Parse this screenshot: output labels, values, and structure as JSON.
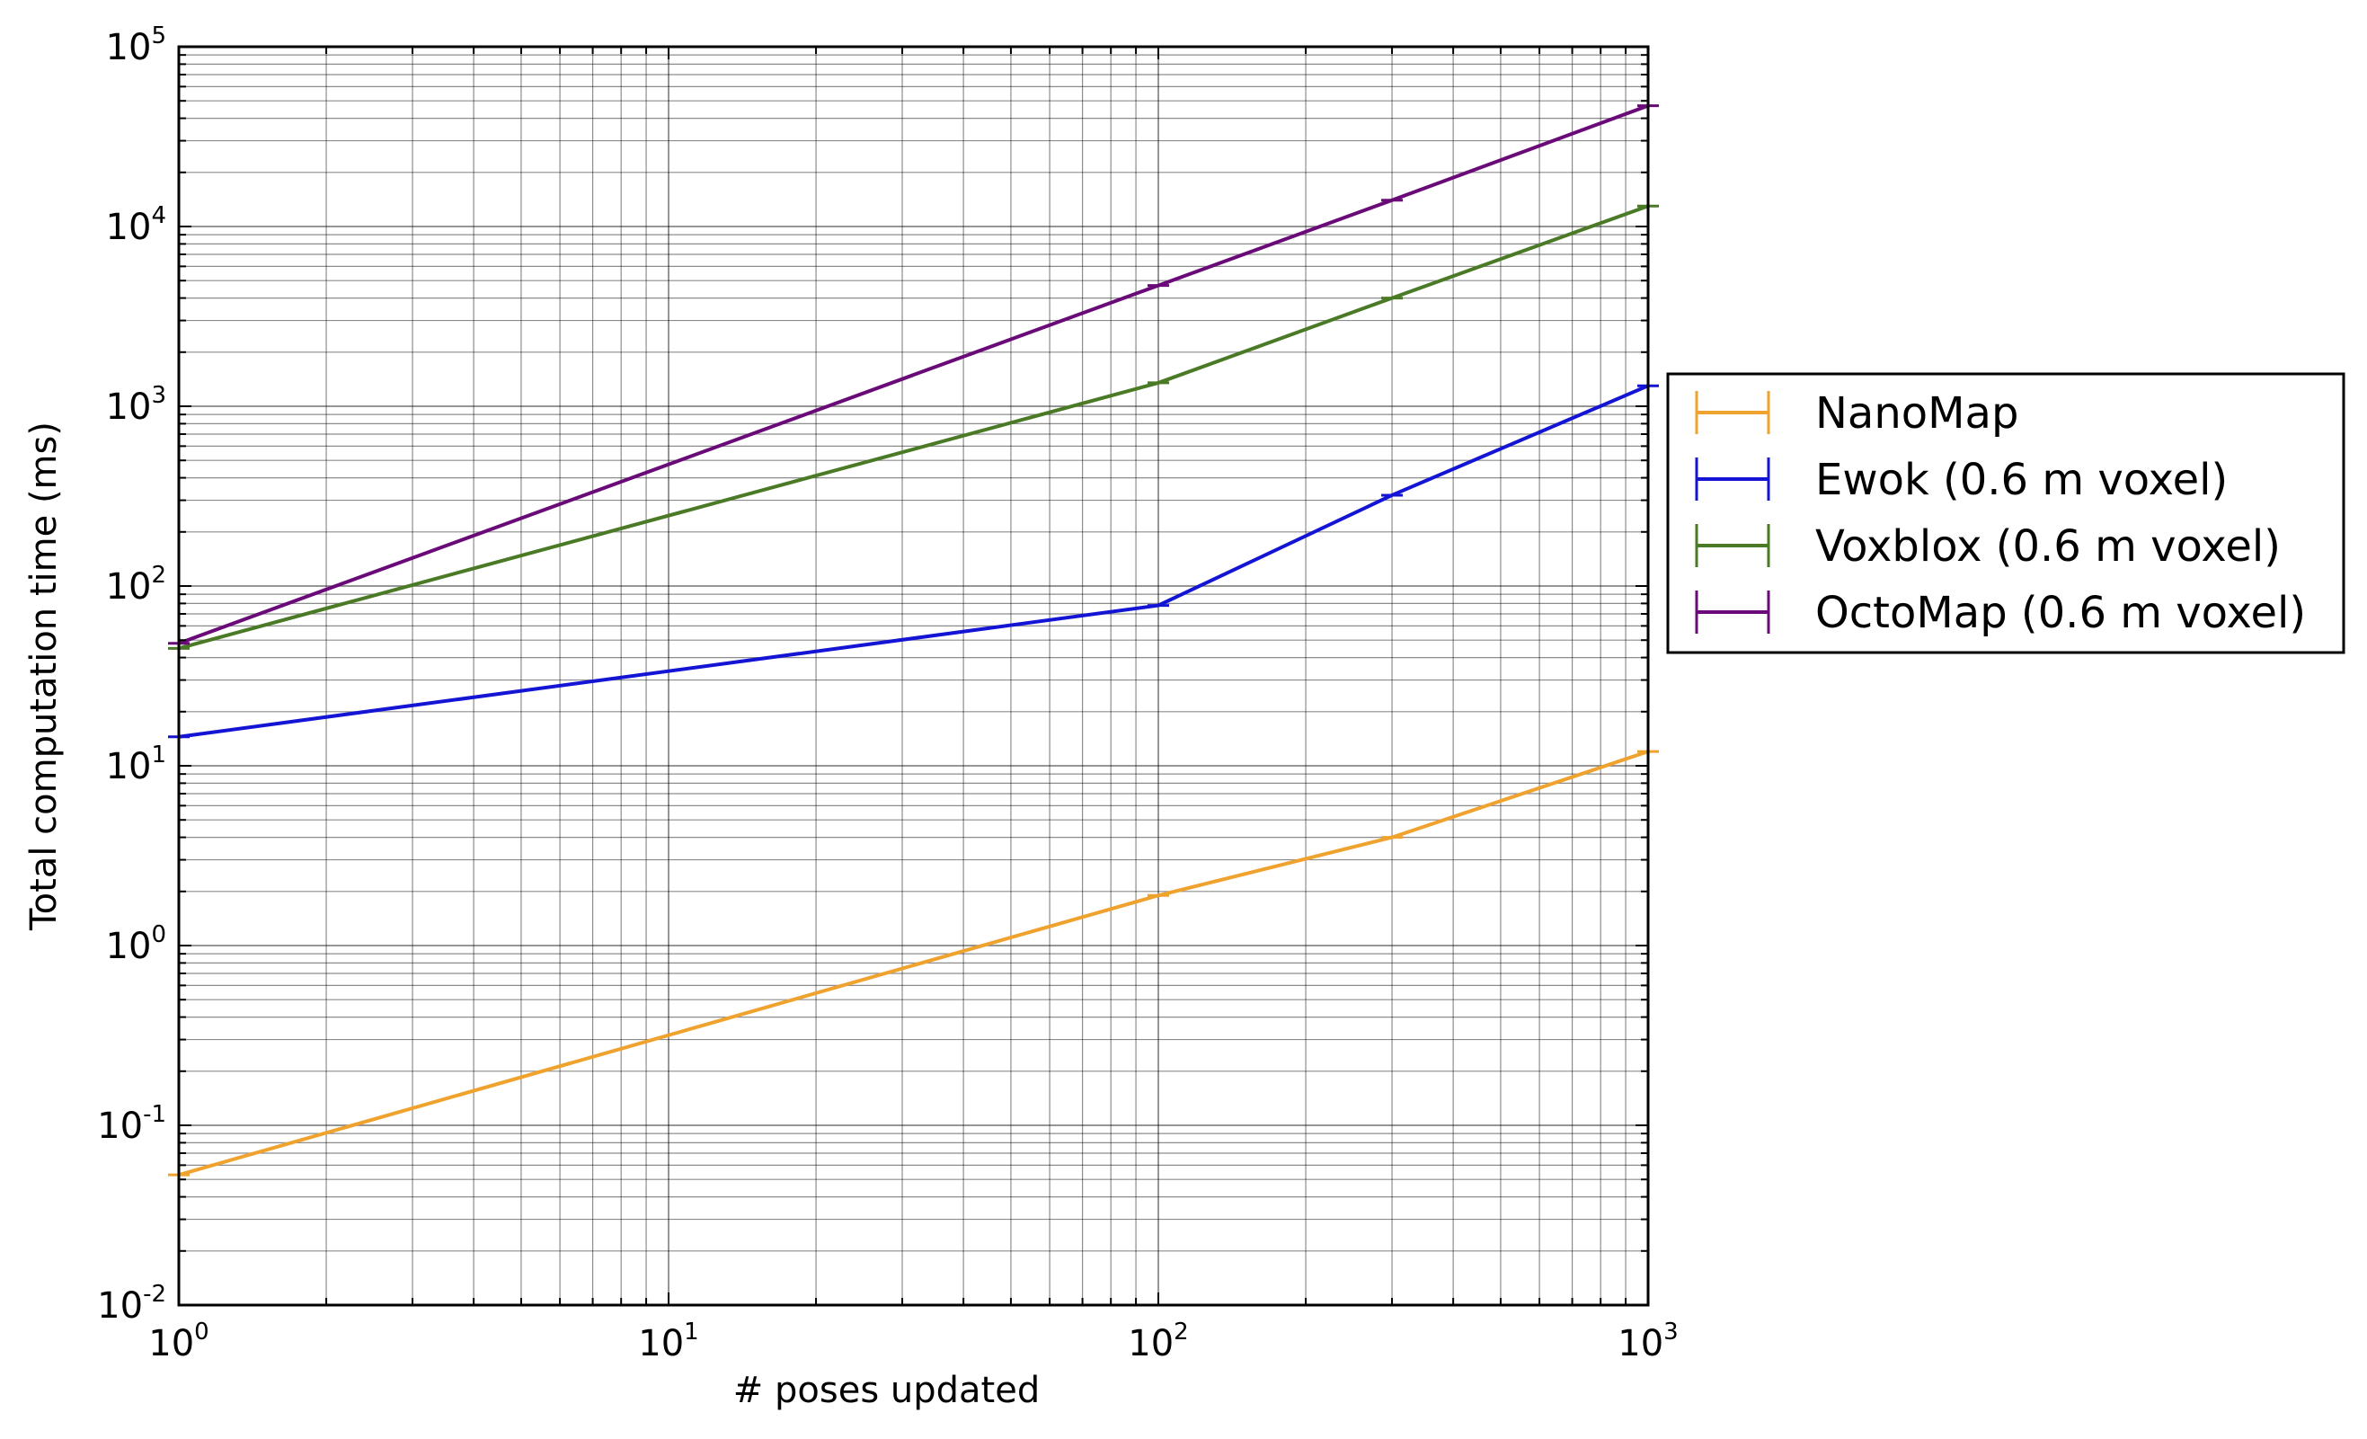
{
  "chart_data": {
    "type": "line",
    "xlabel": "# poses updated",
    "ylabel": "Total computation time (ms)",
    "xscale": "log",
    "yscale": "log",
    "xlim": [
      1,
      1000
    ],
    "ylim": [
      0.01,
      100000
    ],
    "grid": true,
    "legend_position": "outside-right",
    "x_ticks": [
      {
        "base": "10",
        "exp": "0",
        "value": 1
      },
      {
        "base": "10",
        "exp": "1",
        "value": 10
      },
      {
        "base": "10",
        "exp": "2",
        "value": 100
      },
      {
        "base": "10",
        "exp": "3",
        "value": 1000
      }
    ],
    "y_ticks": [
      {
        "base": "10",
        "exp": "-2",
        "value": 0.01
      },
      {
        "base": "10",
        "exp": "-1",
        "value": 0.1
      },
      {
        "base": "10",
        "exp": "0",
        "value": 1
      },
      {
        "base": "10",
        "exp": "1",
        "value": 10
      },
      {
        "base": "10",
        "exp": "2",
        "value": 100
      },
      {
        "base": "10",
        "exp": "3",
        "value": 1000
      },
      {
        "base": "10",
        "exp": "4",
        "value": 10000
      },
      {
        "base": "10",
        "exp": "5",
        "value": 100000
      }
    ],
    "series": [
      {
        "name": "NanoMap",
        "color": "#f0a22e",
        "points": [
          {
            "x": 1,
            "y": 0.053
          },
          {
            "x": 100,
            "y": 1.9
          },
          {
            "x": 300,
            "y": 4.0
          },
          {
            "x": 1000,
            "y": 12
          }
        ]
      },
      {
        "name": "Ewok (0.6 m voxel)",
        "color": "#1414d4",
        "points": [
          {
            "x": 1,
            "y": 14.5
          },
          {
            "x": 100,
            "y": 78
          },
          {
            "x": 300,
            "y": 320
          },
          {
            "x": 1000,
            "y": 1300
          }
        ]
      },
      {
        "name": "Voxblox (0.6 m voxel)",
        "color": "#4a7a25",
        "points": [
          {
            "x": 1,
            "y": 45
          },
          {
            "x": 100,
            "y": 1350
          },
          {
            "x": 300,
            "y": 4000
          },
          {
            "x": 1000,
            "y": 13000
          }
        ]
      },
      {
        "name": "OctoMap (0.6 m voxel)",
        "color": "#6a0a78",
        "points": [
          {
            "x": 1,
            "y": 48
          },
          {
            "x": 100,
            "y": 4700
          },
          {
            "x": 300,
            "y": 14000
          },
          {
            "x": 1000,
            "y": 47000
          }
        ]
      }
    ]
  }
}
